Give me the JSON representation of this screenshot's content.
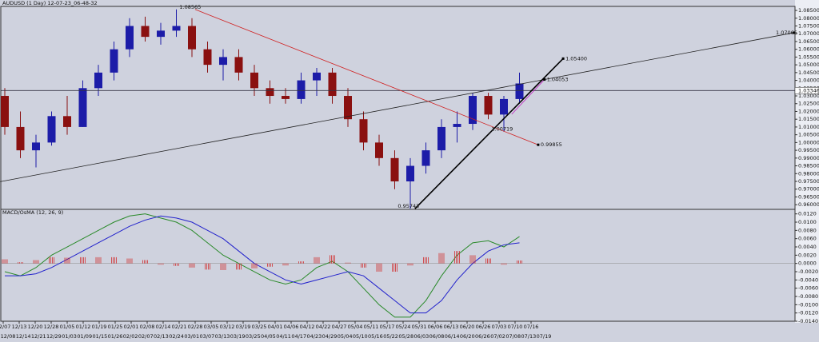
{
  "chart_data": [
    {
      "type": "candlestick",
      "title": "AUDUSD (1 Day) 12-07-23_06-48-32",
      "open": [
        1.03,
        1.01,
        0.995,
        1.0,
        1.017,
        1.01,
        1.035,
        1.045,
        1.06,
        1.075,
        1.068,
        1.072,
        1.075,
        1.06,
        1.05,
        1.055,
        1.045,
        1.035,
        1.03,
        1.028,
        1.04,
        1.045,
        1.03,
        1.015,
        1.0,
        0.99,
        0.975,
        0.985,
        0.995,
        1.01,
        1.012,
        1.03,
        1.018,
        1.028
      ],
      "high": [
        1.035,
        1.02,
        1.005,
        1.02,
        1.03,
        1.04,
        1.05,
        1.065,
        1.08,
        1.081,
        1.077,
        1.08565,
        1.08,
        1.065,
        1.06,
        1.06,
        1.05,
        1.04,
        1.035,
        1.045,
        1.048,
        1.048,
        1.035,
        1.02,
        1.005,
        0.995,
        0.99,
        1.0,
        1.015,
        1.02,
        1.032,
        1.032,
        1.03,
        1.045
      ],
      "low": [
        1.005,
        0.99,
        0.984,
        0.998,
        1.005,
        1.01,
        1.03,
        1.04,
        1.055,
        1.065,
        1.063,
        1.068,
        1.055,
        1.045,
        1.04,
        1.04,
        1.03,
        1.025,
        1.025,
        1.025,
        1.03,
        1.025,
        1.01,
        0.995,
        0.985,
        0.97,
        0.95743,
        0.98,
        0.99,
        1.0,
        1.008,
        1.015,
        1.007,
        1.025
      ],
      "close": [
        1.01,
        0.995,
        1.0,
        1.017,
        1.01,
        1.035,
        1.045,
        1.06,
        1.075,
        1.068,
        1.072,
        1.075,
        1.06,
        1.05,
        1.055,
        1.045,
        1.035,
        1.03,
        1.028,
        1.04,
        1.045,
        1.03,
        1.015,
        1.0,
        0.99,
        0.975,
        0.985,
        0.995,
        1.01,
        1.012,
        1.03,
        1.018,
        1.028,
        1.038
      ],
      "up_color": "#1c1ca8",
      "down_color": "#8a1010",
      "ylim": [
        0.957,
        1.0876
      ],
      "yticks": [
        {
          "value": 0.96,
          "label": "0.96000"
        },
        {
          "value": 0.965,
          "label": "0.96500"
        },
        {
          "value": 0.97,
          "label": "0.97000"
        },
        {
          "value": 0.975,
          "label": "0.97500"
        },
        {
          "value": 0.98,
          "label": "0.98000"
        },
        {
          "value": 0.985,
          "label": "0.98500"
        },
        {
          "value": 0.99,
          "label": "0.99000"
        },
        {
          "value": 0.995,
          "label": "0.99500"
        },
        {
          "value": 1.0,
          "label": "1.00000"
        },
        {
          "value": 1.005,
          "label": "1.00500"
        },
        {
          "value": 1.01,
          "label": "1.01000"
        },
        {
          "value": 1.015,
          "label": "1.01500"
        },
        {
          "value": 1.02,
          "label": "1.02000"
        },
        {
          "value": 1.025,
          "label": "1.02500"
        },
        {
          "value": 1.03,
          "label": "1.03000"
        },
        {
          "value": 1.035,
          "label": "1.03500"
        },
        {
          "value": 1.04,
          "label": "1.04000"
        },
        {
          "value": 1.045,
          "label": "1.04500"
        },
        {
          "value": 1.05,
          "label": "1.05000"
        },
        {
          "value": 1.055,
          "label": "1.05500"
        },
        {
          "value": 1.06,
          "label": "1.06000"
        },
        {
          "value": 1.065,
          "label": "1.06500"
        },
        {
          "value": 1.07,
          "label": "1.07000"
        },
        {
          "value": 1.075,
          "label": "1.07500"
        },
        {
          "value": 1.08,
          "label": "1.08000"
        },
        {
          "value": 1.085,
          "label": "1.08500"
        }
      ],
      "current_price": {
        "value": 1.03346,
        "label": "1.03346",
        "color": "#333344"
      },
      "trendlines": [
        {
          "label": "1.07066",
          "start": [
            -0.3,
            0.9748
          ],
          "end": [
            50.6,
            1.07066
          ],
          "color": "#222222"
        },
        {
          "label": "0.99855",
          "start": [
            12.2,
            1.08565
          ],
          "end": [
            34.2,
            0.99855
          ],
          "color": "#d02020"
        },
        {
          "label": "1.05400",
          "start": [
            26.3,
            0.95743
          ],
          "end": [
            35.8,
            1.054
          ],
          "color": "#000000"
        },
        {
          "label": "1.04053",
          "start": [
            32.5,
            1.0182
          ],
          "end": [
            34.6,
            1.04053
          ],
          "color": "#c020c0"
        }
      ],
      "annotations": [
        {
          "label": "1.08565",
          "at": [
            11.2,
            1.08565
          ]
        },
        {
          "label": "0.95743",
          "at": [
            25.2,
            0.95743
          ]
        },
        {
          "label": "1.00719",
          "at": [
            31.2,
            1.00719
          ]
        }
      ]
    },
    {
      "type": "macd",
      "title": "MACD/OsMA (12, 26, 9)",
      "series": [
        {
          "name": "MACD",
          "color": "#2a8a2a",
          "values": [
            -0.002,
            -0.003,
            -0.001,
            0.002,
            0.004,
            0.006,
            0.008,
            0.01,
            0.0115,
            0.012,
            0.011,
            0.01,
            0.008,
            0.005,
            0.002,
            0.0,
            -0.002,
            -0.004,
            -0.005,
            -0.004,
            -0.001,
            0.0005,
            -0.002,
            -0.006,
            -0.01,
            -0.013,
            -0.013,
            -0.009,
            -0.003,
            0.002,
            0.005,
            0.0055,
            0.004,
            0.0065
          ]
        },
        {
          "name": "Signal",
          "color": "#2222cc",
          "values": [
            -0.003,
            -0.003,
            -0.0025,
            -0.001,
            0.001,
            0.003,
            0.005,
            0.007,
            0.009,
            0.0105,
            0.0115,
            0.011,
            0.01,
            0.008,
            0.006,
            0.003,
            0.0,
            -0.002,
            -0.004,
            -0.005,
            -0.004,
            -0.003,
            -0.002,
            -0.003,
            -0.006,
            -0.009,
            -0.012,
            -0.012,
            -0.009,
            -0.004,
            0.0,
            0.003,
            0.0045,
            0.005
          ]
        },
        {
          "name": "OsMA",
          "color": "#d03030",
          "values": [
            0.001,
            0.0003,
            0.0008,
            0.0015,
            0.0014,
            0.0015,
            0.0015,
            0.0015,
            0.0012,
            0.0008,
            -0.0003,
            -0.0006,
            -0.001,
            -0.0015,
            -0.0016,
            -0.0015,
            -0.0012,
            -0.0008,
            -0.0005,
            0.0005,
            0.0015,
            0.002,
            0.0002,
            -0.001,
            -0.002,
            -0.002,
            -0.0005,
            0.0015,
            0.0025,
            0.003,
            0.002,
            0.0012,
            -0.0003,
            0.0007
          ]
        }
      ],
      "ylim": [
        -0.014,
        0.0131
      ],
      "yticks": [
        {
          "value": 0.012,
          "label": "0.0120"
        },
        {
          "value": 0.01,
          "label": "0.0100"
        },
        {
          "value": 0.008,
          "label": "0.0080"
        },
        {
          "value": 0.006,
          "label": "0.0060"
        },
        {
          "value": 0.004,
          "label": "0.0040"
        },
        {
          "value": 0.002,
          "label": "0.0020"
        },
        {
          "value": 0,
          "label": "0.0000"
        },
        {
          "value": -0.002,
          "label": "-0.0020"
        },
        {
          "value": -0.004,
          "label": "-0.0040"
        },
        {
          "value": -0.006,
          "label": "-0.0060"
        },
        {
          "value": -0.008,
          "label": "-0.0080"
        },
        {
          "value": -0.01,
          "label": "-0.0100"
        },
        {
          "value": -0.012,
          "label": "-0.0120"
        },
        {
          "value": -0.014,
          "label": "-0.0140"
        }
      ],
      "date_labels_top": [
        "12/07",
        "12/13",
        "12/20",
        "12/28",
        "01/05",
        "01/12",
        "01/19",
        "01/25",
        "02/01",
        "02/08",
        "02/14",
        "02/21",
        "02/28",
        "03/05",
        "03/12",
        "03/19",
        "03/25",
        "04/01",
        "04/06",
        "04/12",
        "04/22",
        "04/27",
        "05/04",
        "05/11",
        "05/17",
        "05/24",
        "05/31",
        "06/06",
        "06/13",
        "06/20",
        "06/26",
        "07/03",
        "07/10",
        "07/16"
      ],
      "date_labels_bottom": [
        "12/08",
        "12/14",
        "12/21",
        "12/29",
        "01/03",
        "01/09",
        "01/15",
        "01/26",
        "02/02",
        "02/07",
        "02/13",
        "02/24",
        "03/01",
        "03/07",
        "03/13",
        "03/19",
        "03/25",
        "04/05",
        "04/11",
        "04/17",
        "04/23",
        "04/29",
        "05/04",
        "05/10",
        "05/16",
        "05/22",
        "05/28",
        "06/03",
        "06/08",
        "06/14",
        "06/20",
        "06/26",
        "07/02",
        "07/08",
        "07/13",
        "07/19"
      ]
    }
  ]
}
